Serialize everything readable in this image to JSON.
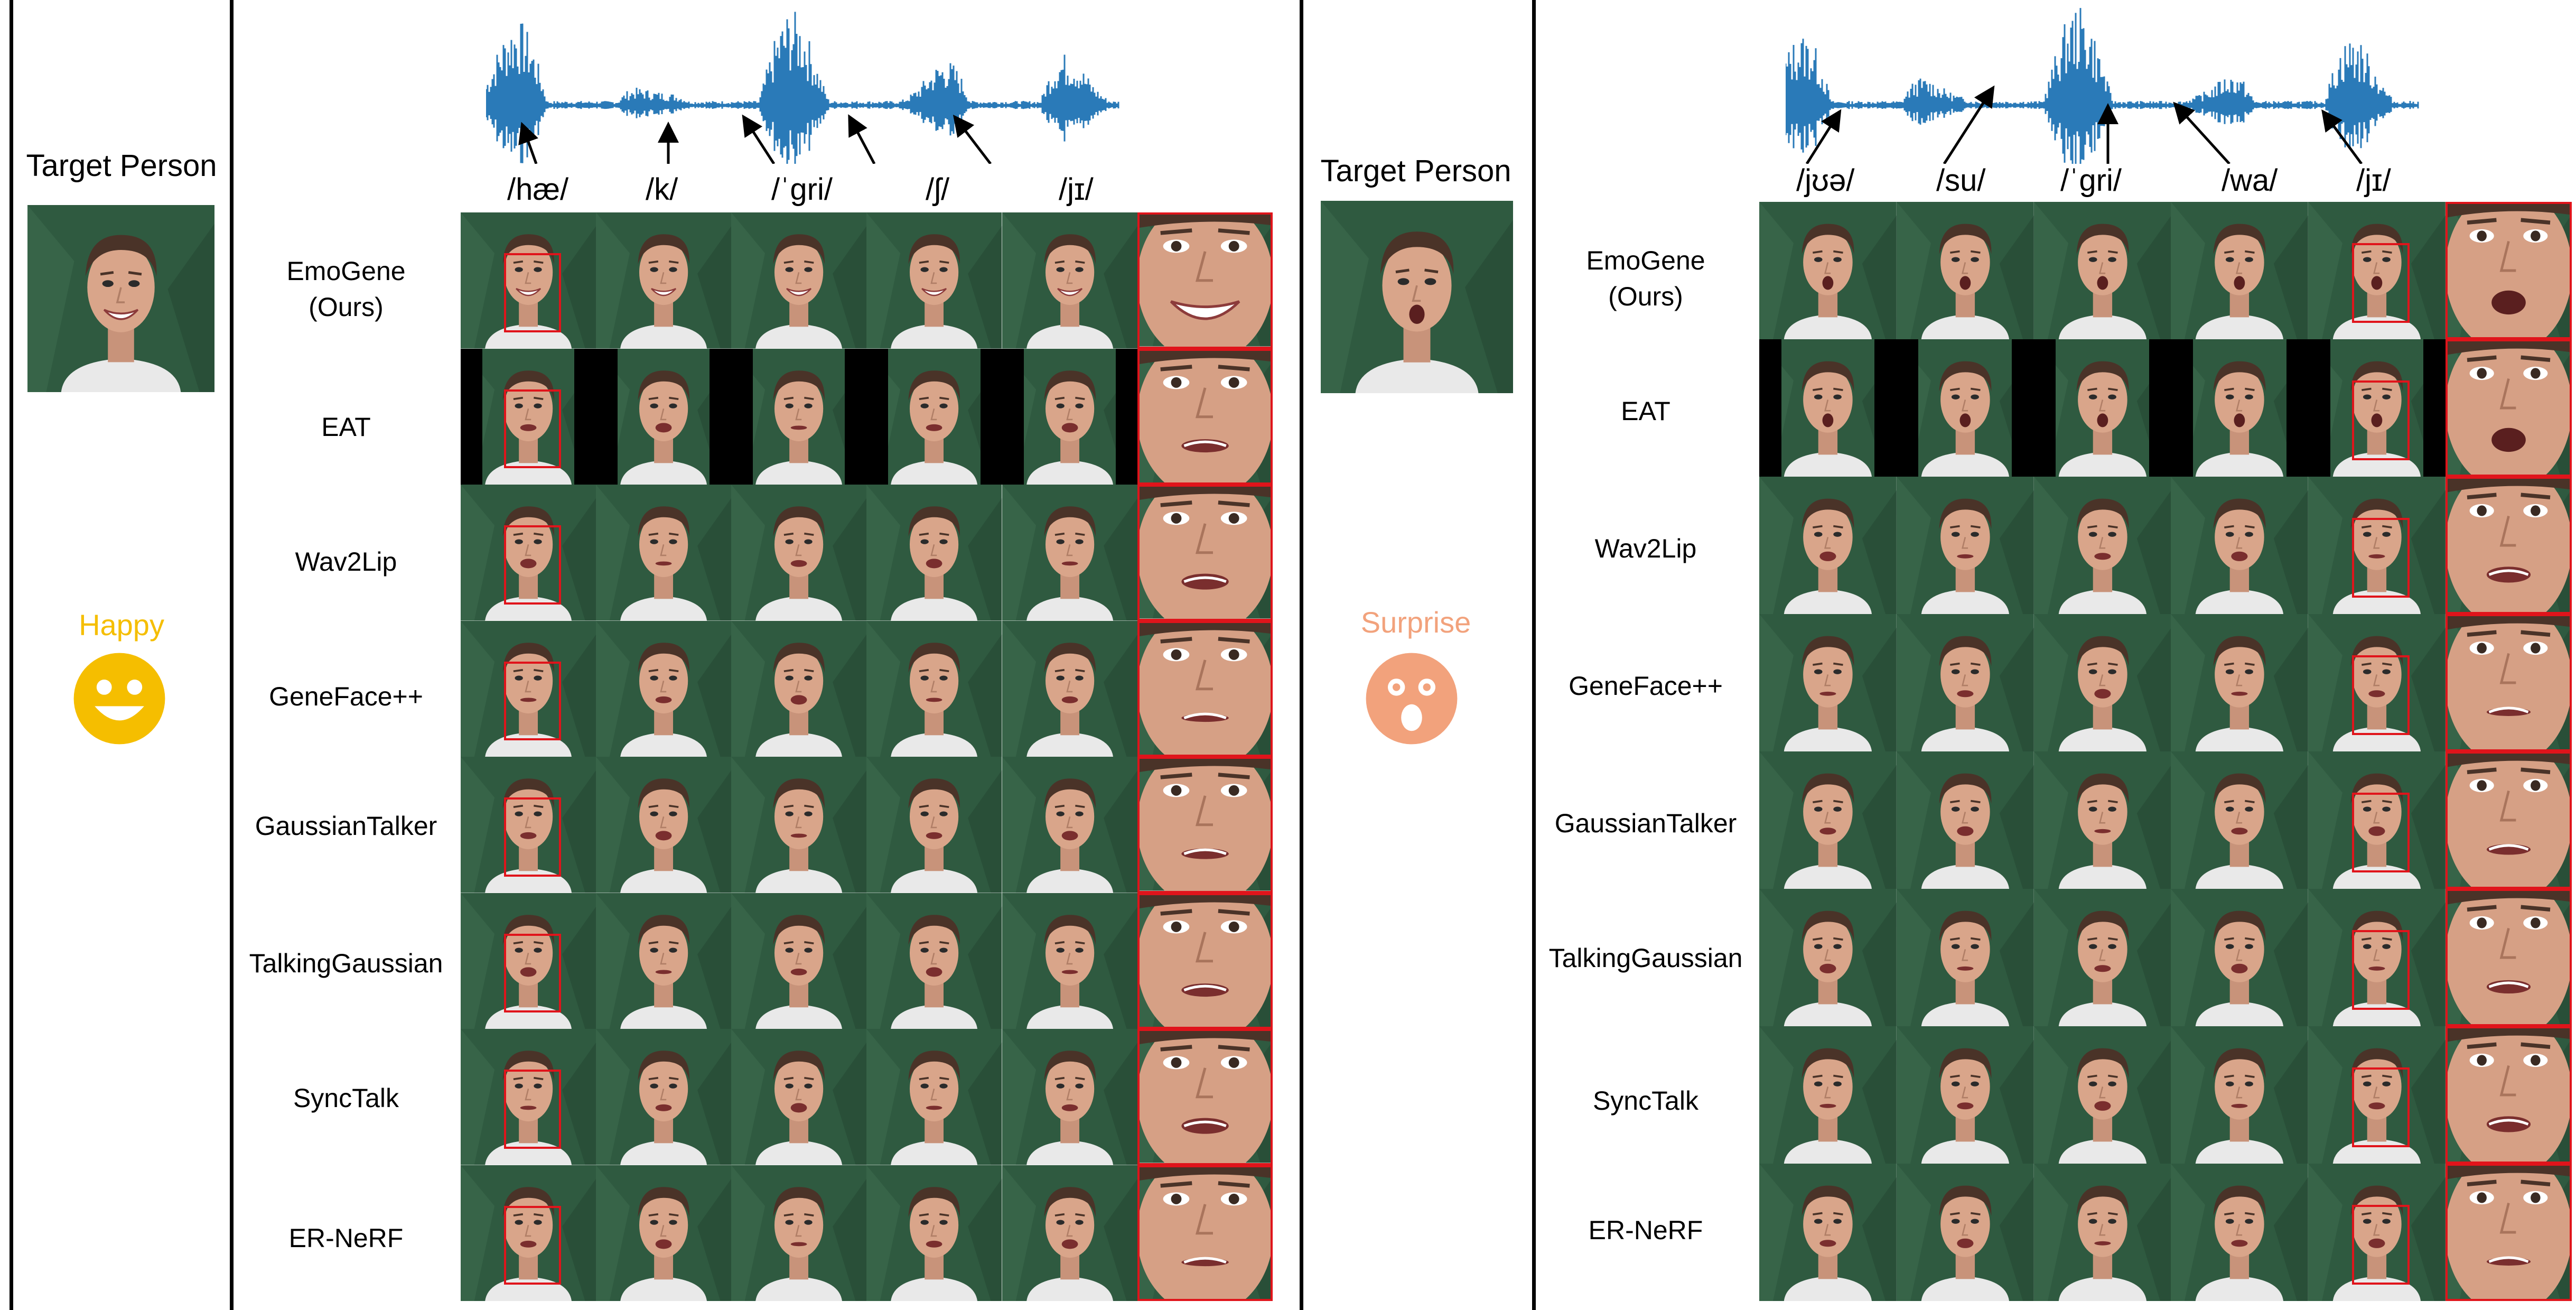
{
  "panels": [
    {
      "id": "left",
      "title": "Target Person",
      "emotion": "Happy",
      "emotion_color": "#f5be00",
      "emoji_icon": "smiling-face-icon",
      "phonemes": [
        "/hæ/",
        "/k/",
        "/ˈɡri/",
        "/ʃ/",
        "/jɪ/"
      ],
      "methods": [
        "EmoGene\n(Ours)",
        "EAT",
        "Wav2Lip",
        "GeneFace++",
        "GaussianTalker",
        "TalkingGaussian",
        "SyncTalk",
        "ER-NeRF"
      ]
    },
    {
      "id": "right",
      "title": "Target Person",
      "emotion": "Surprise",
      "emotion_color": "#f2a27c",
      "emoji_icon": "surprised-face-icon",
      "phonemes": [
        "/jʊə/",
        "/su/",
        "/ˈɡri/",
        "/wa/",
        "/jɪ/"
      ],
      "methods": [
        "EmoGene\n(Ours)",
        "EAT",
        "Wav2Lip",
        "GeneFace++",
        "GaussianTalker",
        "TalkingGaussian",
        "SyncTalk",
        "ER-NeRF"
      ]
    }
  ],
  "colors": {
    "waveform": "#2a7ab8",
    "highlight_box": "#e0141b",
    "background_green": "#2f5a40"
  }
}
